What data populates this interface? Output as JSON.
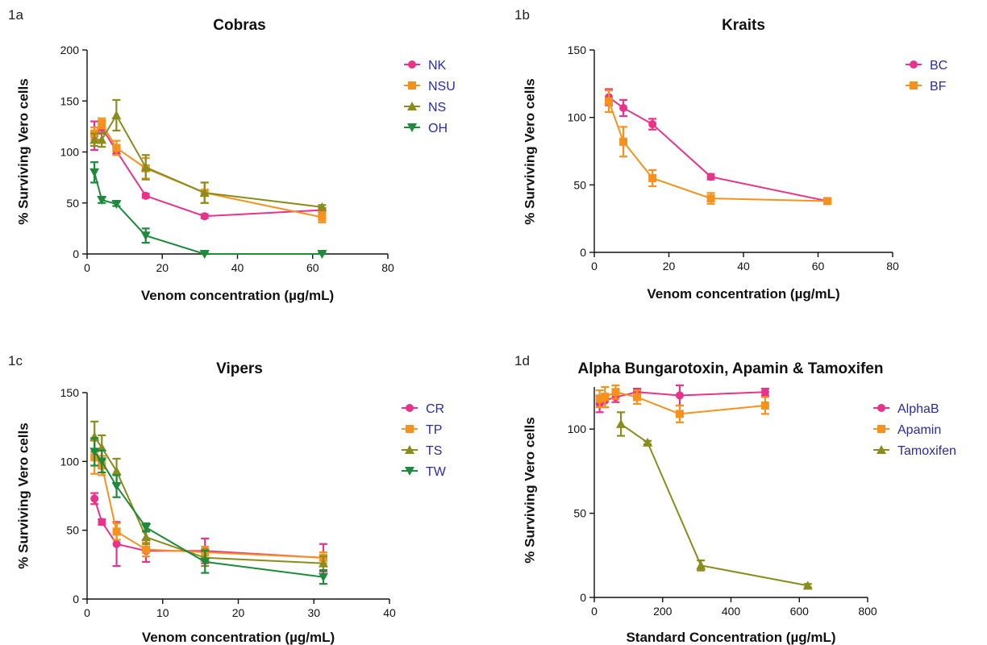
{
  "chart_data": [
    {
      "type": "line",
      "panel_label": "1a",
      "title": "Cobras",
      "xlabel": "Venom concentration (µg/mL)",
      "ylabel": "% Surviving Vero cells",
      "xlim": [
        0,
        80
      ],
      "ylim": [
        0,
        200
      ],
      "xticks": [
        0,
        20,
        40,
        60,
        80
      ],
      "yticks": [
        0,
        50,
        100,
        150,
        200
      ],
      "legend": "right",
      "series": [
        {
          "name": "NK",
          "color": "#e8338a",
          "marker": "circle",
          "x": [
            1.95,
            3.9,
            7.8,
            15.6,
            31.25,
            62.5
          ],
          "y": [
            116,
            124,
            101,
            57,
            37,
            43
          ],
          "err": [
            14,
            6,
            3,
            2,
            2,
            2
          ]
        },
        {
          "name": "NSU",
          "color": "#f5921e",
          "marker": "square",
          "x": [
            1.95,
            3.9,
            7.8,
            15.6,
            31.25,
            62.5
          ],
          "y": [
            118,
            128,
            104,
            84,
            60,
            36
          ],
          "err": [
            6,
            5,
            7,
            10,
            10,
            5
          ]
        },
        {
          "name": "NS",
          "color": "#8a8c1c",
          "marker": "triangle-up",
          "x": [
            1.95,
            3.9,
            7.8,
            15.6,
            31.25,
            62.5
          ],
          "y": [
            112,
            112,
            136,
            85,
            60,
            46
          ],
          "err": [
            6,
            7,
            15,
            12,
            10,
            2
          ]
        },
        {
          "name": "OH",
          "color": "#1e8a3c",
          "marker": "triangle-down",
          "x": [
            1.95,
            3.9,
            7.8,
            15.6,
            31.25,
            62.5
          ],
          "y": [
            80,
            53,
            49,
            18,
            0,
            0
          ],
          "err": [
            10,
            3,
            2,
            7,
            1,
            1
          ]
        }
      ]
    },
    {
      "type": "line",
      "panel_label": "1b",
      "title": "Kraits",
      "xlabel": "Venom concentration (µg/mL)",
      "ylabel": "% Surviving Vero cells",
      "xlim": [
        0,
        80
      ],
      "ylim": [
        0,
        150
      ],
      "xticks": [
        0,
        20,
        40,
        60,
        80
      ],
      "yticks": [
        0,
        50,
        100,
        150
      ],
      "legend": "right",
      "series": [
        {
          "name": "BC",
          "color": "#e8338a",
          "marker": "circle",
          "x": [
            3.9,
            7.8,
            15.6,
            31.25,
            62.5
          ],
          "y": [
            115,
            107,
            95,
            56,
            38
          ],
          "err": [
            6,
            6,
            4,
            2,
            2
          ]
        },
        {
          "name": "BF",
          "color": "#f5921e",
          "marker": "square",
          "x": [
            3.9,
            7.8,
            15.6,
            31.25,
            62.5
          ],
          "y": [
            112,
            82,
            55,
            40,
            38
          ],
          "err": [
            8,
            11,
            6,
            4,
            2
          ]
        }
      ]
    },
    {
      "type": "line",
      "panel_label": "1c",
      "title": "Vipers",
      "xlabel": "Venom concentration (µg/mL)",
      "ylabel": "% Surviving Vero cells",
      "xlim": [
        0,
        40
      ],
      "ylim": [
        0,
        150
      ],
      "xticks": [
        0,
        10,
        20,
        30,
        40
      ],
      "yticks": [
        0,
        50,
        100,
        150
      ],
      "legend": "right",
      "series": [
        {
          "name": "CR",
          "color": "#e8338a",
          "marker": "circle",
          "x": [
            0.98,
            1.95,
            3.9,
            7.8,
            15.6,
            31.25
          ],
          "y": [
            73,
            56,
            40,
            35,
            35,
            30
          ],
          "err": [
            4,
            2,
            16,
            8,
            9,
            10
          ]
        },
        {
          "name": "TP",
          "color": "#f5921e",
          "marker": "square",
          "x": [
            0.98,
            1.95,
            3.9,
            7.8,
            15.6,
            31.25
          ],
          "y": [
            103,
            97,
            49,
            36,
            34,
            30
          ],
          "err": [
            12,
            7,
            6,
            5,
            4,
            4
          ]
        },
        {
          "name": "TS",
          "color": "#8a8c1c",
          "marker": "triangle-up",
          "x": [
            0.98,
            1.95,
            3.9,
            7.8,
            15.6,
            31.25
          ],
          "y": [
            118,
            110,
            93,
            45,
            30,
            26
          ],
          "err": [
            11,
            9,
            9,
            5,
            6,
            5
          ]
        },
        {
          "name": "TW",
          "color": "#1e8a3c",
          "marker": "triangle-down",
          "x": [
            0.98,
            1.95,
            3.9,
            7.8,
            15.6,
            31.25
          ],
          "y": [
            107,
            100,
            82,
            52,
            27,
            16
          ],
          "err": [
            10,
            8,
            8,
            3,
            8,
            5
          ]
        }
      ]
    },
    {
      "type": "line",
      "panel_label": "1d",
      "title": "Alpha Bungarotoxin, Apamin & Tamoxifen",
      "xlabel": "Standard Concentration  (µg/mL)",
      "ylabel": "% Surviving Vero cells",
      "xlim": [
        0,
        800
      ],
      "ylim": [
        0,
        125
      ],
      "xticks": [
        0,
        200,
        400,
        600,
        800
      ],
      "yticks": [
        0,
        50,
        100
      ],
      "legend": "right",
      "series": [
        {
          "name": "AlphaB",
          "color": "#e8338a",
          "marker": "circle",
          "x": [
            15.6,
            31.25,
            62.5,
            125,
            250,
            500
          ],
          "y": [
            115,
            117,
            119,
            122,
            120,
            122
          ],
          "err": [
            5,
            4,
            3,
            2,
            6,
            2
          ]
        },
        {
          "name": "Apamin",
          "color": "#f5921e",
          "marker": "square",
          "x": [
            15.6,
            31.25,
            62.5,
            125,
            250,
            500
          ],
          "y": [
            118,
            119,
            122,
            119,
            109,
            114
          ],
          "err": [
            5,
            6,
            4,
            4,
            5,
            5
          ]
        },
        {
          "name": "Tamoxifen",
          "color": "#8a8c1c",
          "marker": "triangle-up",
          "x": [
            78,
            156,
            312,
            625
          ],
          "y": [
            103,
            92,
            19,
            7
          ],
          "err": [
            7,
            1,
            3,
            1
          ]
        }
      ]
    }
  ]
}
